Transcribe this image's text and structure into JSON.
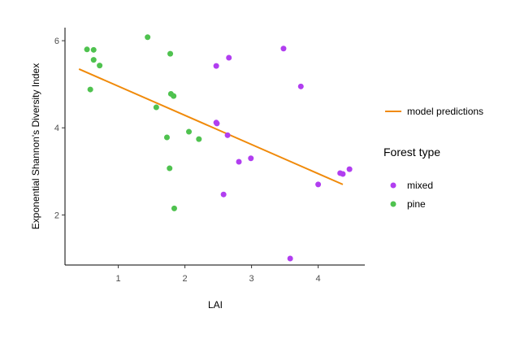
{
  "chart_data": {
    "type": "scatter",
    "xlabel": "LAI",
    "ylabel": "Exponential Shannon's Diversity Index",
    "xlim": [
      0.2,
      4.7
    ],
    "ylim": [
      0.85,
      6.3
    ],
    "x_ticks": [
      1,
      2,
      3,
      4
    ],
    "y_ticks": [
      2,
      4,
      6
    ],
    "grid": false,
    "legend_position": "right",
    "legend": {
      "line_label": "model predictions",
      "title": "Forest type",
      "items": [
        "mixed",
        "pine"
      ]
    },
    "colors": {
      "mixed": "#b13ef0",
      "pine": "#4fc24f",
      "model": "#f08a0a",
      "axis": "#000000",
      "tick_label": "#4d4d4d"
    },
    "series": [
      {
        "name": "mixed",
        "points": [
          [
            2.47,
            5.42
          ],
          [
            2.66,
            5.61
          ],
          [
            3.48,
            5.82
          ],
          [
            3.74,
            4.95
          ],
          [
            2.47,
            4.12
          ],
          [
            2.48,
            4.1
          ],
          [
            2.64,
            3.83
          ],
          [
            2.99,
            3.3
          ],
          [
            2.81,
            3.22
          ],
          [
            2.58,
            2.47
          ],
          [
            4.0,
            2.7
          ],
          [
            4.33,
            2.96
          ],
          [
            4.37,
            2.94
          ],
          [
            4.47,
            3.05
          ],
          [
            3.58,
            1.0
          ]
        ]
      },
      {
        "name": "pine",
        "points": [
          [
            0.53,
            5.8
          ],
          [
            0.63,
            5.79
          ],
          [
            1.44,
            6.08
          ],
          [
            0.63,
            5.56
          ],
          [
            0.72,
            5.43
          ],
          [
            1.78,
            5.7
          ],
          [
            0.58,
            4.88
          ],
          [
            1.57,
            4.47
          ],
          [
            1.79,
            4.78
          ],
          [
            1.83,
            4.73
          ],
          [
            2.06,
            3.91
          ],
          [
            2.21,
            3.74
          ],
          [
            1.73,
            3.78
          ],
          [
            1.77,
            3.07
          ],
          [
            1.84,
            2.15
          ]
        ]
      },
      {
        "name": "model predictions",
        "type": "line",
        "points": [
          [
            0.41,
            5.35
          ],
          [
            4.37,
            2.7
          ]
        ]
      }
    ]
  }
}
